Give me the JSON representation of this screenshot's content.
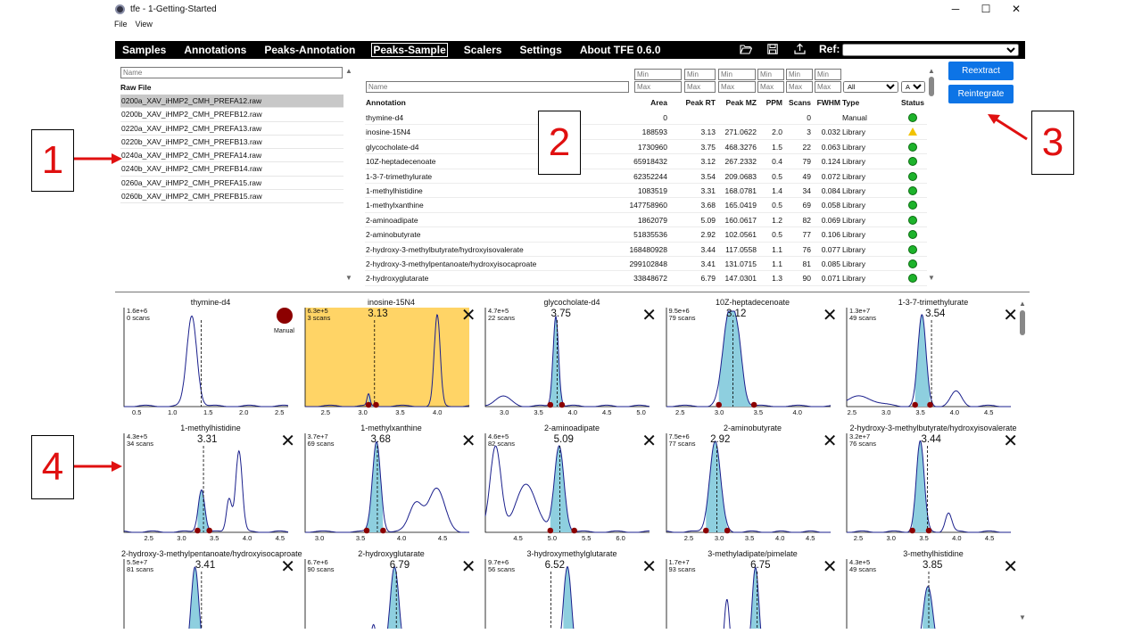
{
  "window": {
    "title": "tfe - 1-Getting-Started",
    "minimize": "─",
    "maximize": "☐",
    "close": "✕"
  },
  "menu": [
    "File",
    "View"
  ],
  "nav": {
    "tabs": [
      "Samples",
      "Annotations",
      "Peaks-Annotation",
      "Peaks-Sample",
      "Scalers",
      "Settings",
      "About TFE 0.6.0"
    ],
    "active": 3,
    "ref_label": "Ref:",
    "icons": [
      "folder-open-icon",
      "save-icon",
      "upload-icon"
    ]
  },
  "files": {
    "filter_placeholder": "Name",
    "header": "Raw File",
    "items": [
      "0200a_XAV_iHMP2_CMH_PREFA12.raw",
      "0200b_XAV_iHMP2_CMH_PREFB12.raw",
      "0220a_XAV_iHMP2_CMH_PREFA13.raw",
      "0220b_XAV_iHMP2_CMH_PREFB13.raw",
      "0240a_XAV_iHMP2_CMH_PREFA14.raw",
      "0240b_XAV_iHMP2_CMH_PREFB14.raw",
      "0260a_XAV_iHMP2_CMH_PREFA15.raw",
      "0260b_XAV_iHMP2_CMH_PREFB15.raw"
    ],
    "selected": 0
  },
  "table": {
    "name_placeholder": "Name",
    "min_placeholder": "Min",
    "max_placeholder": "Max",
    "type_filter": "All",
    "status_filter": "All",
    "headers": [
      "Annotation",
      "Area",
      "Peak RT",
      "Peak MZ",
      "PPM",
      "Scans",
      "FWHM",
      "Type",
      "Status"
    ],
    "rows": [
      [
        "thymine-d4",
        "0",
        "",
        "",
        "",
        "0",
        "",
        "Manual",
        "ok"
      ],
      [
        "inosine-15N4",
        "188593",
        "3.13",
        "271.0622",
        "2.0",
        "3",
        "0.032",
        "Library",
        "warn"
      ],
      [
        "glycocholate-d4",
        "1730960",
        "3.75",
        "468.3276",
        "1.5",
        "22",
        "0.063",
        "Library",
        "ok"
      ],
      [
        "10Z-heptadecenoate",
        "65918432",
        "3.12",
        "267.2332",
        "0.4",
        "79",
        "0.124",
        "Library",
        "ok"
      ],
      [
        "1-3-7-trimethylurate",
        "62352244",
        "3.54",
        "209.0683",
        "0.5",
        "49",
        "0.072",
        "Library",
        "ok"
      ],
      [
        "1-methylhistidine",
        "1083519",
        "3.31",
        "168.0781",
        "1.4",
        "34",
        "0.084",
        "Library",
        "ok"
      ],
      [
        "1-methylxanthine",
        "147758960",
        "3.68",
        "165.0419",
        "0.5",
        "69",
        "0.058",
        "Library",
        "ok"
      ],
      [
        "2-aminoadipate",
        "1862079",
        "5.09",
        "160.0617",
        "1.2",
        "82",
        "0.069",
        "Library",
        "ok"
      ],
      [
        "2-aminobutyrate",
        "51835536",
        "2.92",
        "102.0561",
        "0.5",
        "77",
        "0.106",
        "Library",
        "ok"
      ],
      [
        "2-hydroxy-3-methylbutyrate/hydroxyisovalerate",
        "168480928",
        "3.44",
        "117.0558",
        "1.1",
        "76",
        "0.077",
        "Library",
        "ok"
      ],
      [
        "2-hydroxy-3-methylpentanoate/hydroxyisocaproate",
        "299102848",
        "3.41",
        "131.0715",
        "1.1",
        "81",
        "0.085",
        "Library",
        "ok"
      ],
      [
        "2-hydroxyglutarate",
        "33848672",
        "6.79",
        "147.0301",
        "1.3",
        "90",
        "0.071",
        "Library",
        "ok"
      ]
    ]
  },
  "buttons": {
    "reextract": "Reextract",
    "reintegrate": "Reintegrate"
  },
  "annotations": [
    "1",
    "2",
    "3",
    "4"
  ],
  "plots": [
    {
      "title": "thymine-d4",
      "intensity": "1.6e+6",
      "scans": "0 scans",
      "rt": "",
      "manual": true,
      "manual_label": "Manual",
      "highlight": false,
      "ticks": [
        "0.5",
        "1.0",
        "1.5",
        "2.0",
        "2.5"
      ],
      "xmin": 0.3,
      "xmax": 2.6,
      "peaks": [
        [
          1.25,
          0.95,
          0.07
        ]
      ],
      "dashed": 1.38,
      "integ": null
    },
    {
      "title": "inosine-15N4",
      "intensity": "6.3e+5",
      "scans": "3 scans",
      "rt": "3.13",
      "manual": false,
      "highlight": true,
      "ticks": [
        "2.5",
        "3.0",
        "3.5",
        "4.0"
      ],
      "xmin": 2.2,
      "xmax": 4.4,
      "peaks": [
        [
          3.05,
          0.12,
          0.02
        ],
        [
          3.97,
          0.95,
          0.04
        ]
      ],
      "dashed": 3.13,
      "integ": [
        3.05,
        3.15
      ]
    },
    {
      "title": "glycocholate-d4",
      "intensity": "4.7e+5",
      "scans": "22 scans",
      "rt": "3.75",
      "manual": false,
      "highlight": false,
      "ticks": [
        "3.0",
        "3.5",
        "4.0",
        "4.5",
        "5.0"
      ],
      "xmin": 2.7,
      "xmax": 5.1,
      "peaks": [
        [
          3.73,
          0.95,
          0.04
        ],
        [
          2.95,
          0.1,
          0.12
        ]
      ],
      "dashed": 3.75,
      "integ": [
        3.65,
        3.82
      ]
    },
    {
      "title": "10Z-heptadecenoate",
      "intensity": "9.5e+6",
      "scans": "79 scans",
      "rt": "3.12",
      "manual": false,
      "highlight": false,
      "ticks": [
        "2.5",
        "3.0",
        "3.5",
        "4.0"
      ],
      "xmin": 2.3,
      "xmax": 4.4,
      "peaks": [
        [
          3.1,
          0.95,
          0.08
        ],
        [
          3.22,
          0.5,
          0.06
        ]
      ],
      "dashed": 3.15,
      "integ": [
        2.97,
        3.42
      ]
    },
    {
      "title": "1-3-7-trimethylurate",
      "intensity": "1.3e+7",
      "scans": "49 scans",
      "rt": "3.54",
      "manual": false,
      "highlight": false,
      "ticks": [
        "2.5",
        "3.0",
        "3.5",
        "4.0",
        "4.5"
      ],
      "xmin": 2.4,
      "xmax": 4.8,
      "peaks": [
        [
          3.5,
          0.95,
          0.06
        ],
        [
          4.0,
          0.15,
          0.08
        ],
        [
          2.6,
          0.1,
          0.2
        ]
      ],
      "dashed": 3.64,
      "integ": [
        3.4,
        3.62
      ]
    },
    {
      "title": "1-methylhistidine",
      "intensity": "4.3e+5",
      "scans": "34 scans",
      "rt": "3.31",
      "manual": false,
      "highlight": false,
      "ticks": [
        "2.5",
        "3.0",
        "3.5",
        "4.0",
        "4.5"
      ],
      "xmin": 2.1,
      "xmax": 4.6,
      "peaks": [
        [
          3.28,
          0.45,
          0.05
        ],
        [
          3.85,
          0.85,
          0.05
        ],
        [
          3.7,
          0.35,
          0.04
        ]
      ],
      "dashed": 3.31,
      "integ": [
        3.22,
        3.4
      ]
    },
    {
      "title": "1-methylxanthine",
      "intensity": "3.7e+7",
      "scans": "69 scans",
      "rt": "3.68",
      "manual": false,
      "highlight": false,
      "ticks": [
        "3.0",
        "3.5",
        "4.0",
        "4.5"
      ],
      "xmin": 2.8,
      "xmax": 4.8,
      "peaks": [
        [
          3.67,
          0.95,
          0.05
        ],
        [
          4.4,
          0.45,
          0.1
        ],
        [
          4.15,
          0.3,
          0.08
        ]
      ],
      "dashed": 3.68,
      "integ": [
        3.55,
        3.75
      ]
    },
    {
      "title": "2-aminoadipate",
      "intensity": "4.6e+5",
      "scans": "82 scans",
      "rt": "5.09",
      "manual": false,
      "highlight": false,
      "ticks": [
        "4.5",
        "5.0",
        "5.5",
        "6.0"
      ],
      "xmin": 4.0,
      "xmax": 6.4,
      "peaks": [
        [
          5.08,
          0.9,
          0.07
        ],
        [
          4.15,
          0.9,
          0.08
        ],
        [
          4.6,
          0.5,
          0.15
        ]
      ],
      "dashed": 5.09,
      "integ": [
        4.95,
        5.3
      ]
    },
    {
      "title": "2-aminobutyrate",
      "intensity": "7.5e+6",
      "scans": "77 scans",
      "rt": "2.92",
      "manual": false,
      "highlight": false,
      "ticks": [
        "2.5",
        "3.0",
        "3.5",
        "4.0",
        "4.5"
      ],
      "xmin": 2.1,
      "xmax": 4.8,
      "peaks": [
        [
          2.9,
          0.95,
          0.09
        ]
      ],
      "dashed": 2.93,
      "integ": [
        2.75,
        3.1
      ]
    },
    {
      "title": "2-hydroxy-3-methylbutyrate/hydroxyisovalerate",
      "intensity": "3.2e+7",
      "scans": "76 scans",
      "rt": "3.44",
      "manual": false,
      "highlight": false,
      "ticks": [
        "2.5",
        "3.0",
        "3.5",
        "4.0",
        "4.5"
      ],
      "xmin": 2.3,
      "xmax": 4.8,
      "peaks": [
        [
          3.42,
          0.95,
          0.06
        ],
        [
          3.85,
          0.2,
          0.05
        ]
      ],
      "dashed": 3.53,
      "integ": [
        3.3,
        3.55
      ]
    },
    {
      "title": "2-hydroxy-3-methylpentanoate/hydroxyisocaproate",
      "intensity": "5.5e+7",
      "scans": "81 scans",
      "rt": "3.41",
      "manual": false,
      "highlight": false,
      "ticks": [],
      "xmin": 2.3,
      "xmax": 4.8,
      "peaks": [
        [
          3.38,
          0.95,
          0.06
        ]
      ],
      "dashed": 3.48,
      "integ": [
        3.3,
        3.5
      ]
    },
    {
      "title": "2-hydroxyglutarate",
      "intensity": "6.7e+6",
      "scans": "90 scans",
      "rt": "6.79",
      "manual": false,
      "highlight": false,
      "ticks": [],
      "xmin": 5.8,
      "xmax": 7.6,
      "peaks": [
        [
          6.78,
          0.95,
          0.05
        ],
        [
          6.55,
          0.35,
          0.03
        ]
      ],
      "dashed": 6.8,
      "integ": [
        6.7,
        6.85
      ]
    },
    {
      "title": "3-hydroxymethylglutarate",
      "intensity": "9.7e+6",
      "scans": "56 scans",
      "rt": "6.52",
      "manual": false,
      "highlight": false,
      "ticks": [],
      "xmin": 5.5,
      "xmax": 7.5,
      "peaks": [
        [
          6.5,
          0.95,
          0.05
        ],
        [
          6.75,
          0.3,
          0.03
        ]
      ],
      "dashed": 6.3,
      "integ": [
        6.45,
        6.6
      ]
    },
    {
      "title": "3-methyladipate/pimelate",
      "intensity": "1.7e+7",
      "scans": "93 scans",
      "rt": "6.75",
      "manual": false,
      "highlight": false,
      "ticks": [],
      "xmin": 5.7,
      "xmax": 7.6,
      "peaks": [
        [
          6.73,
          0.95,
          0.04
        ],
        [
          6.4,
          0.6,
          0.03
        ]
      ],
      "dashed": 6.75,
      "integ": [
        6.68,
        6.8
      ]
    },
    {
      "title": "3-methylhistidine",
      "intensity": "4.3e+5",
      "scans": "49 scans",
      "rt": "3.85",
      "manual": false,
      "highlight": false,
      "ticks": [],
      "xmin": 2.9,
      "xmax": 4.8,
      "peaks": [
        [
          3.84,
          0.75,
          0.06
        ],
        [
          3.45,
          0.25,
          0.03
        ]
      ],
      "dashed": 3.85,
      "integ": [
        3.78,
        3.92
      ]
    }
  ]
}
